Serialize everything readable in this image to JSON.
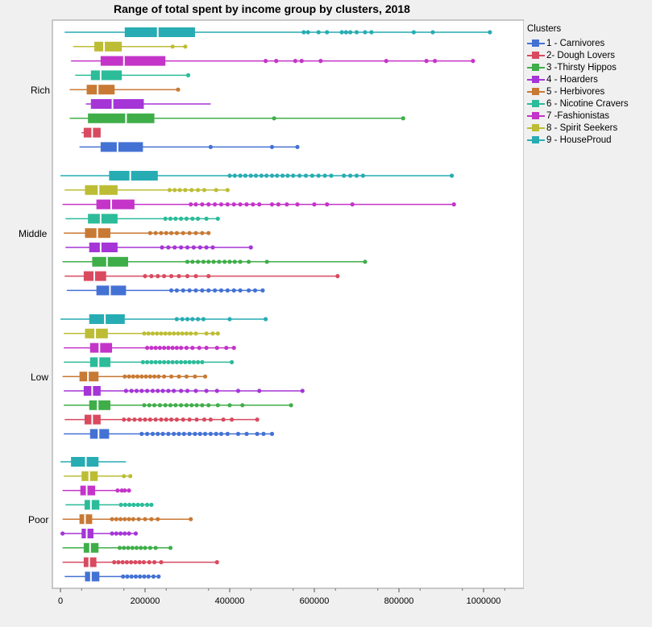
{
  "chart_data": {
    "type": "boxplot",
    "title": "Range of total spent by income group by clusters, 2018",
    "xlabel": "",
    "ylabel": "",
    "xlim": [
      -5000,
      1095000
    ],
    "xticks": [
      0,
      200000,
      400000,
      600000,
      800000,
      1000000
    ],
    "tick_labels": [
      "0",
      "200000",
      "400000",
      "600000",
      "800000",
      "1000000"
    ],
    "legend": {
      "title": "Clusters",
      "position": "right",
      "entries": [
        {
          "name": "1 - Carnivores",
          "color": "#4472d4"
        },
        {
          "name": "2- Dough Lovers",
          "color": "#d94a5f"
        },
        {
          "name": "3 -Thirsty Hippos",
          "color": "#3fae49"
        },
        {
          "name": "4 - Hoarders",
          "color": "#a535d6"
        },
        {
          "name": "5 - Herbivores",
          "color": "#c87934"
        },
        {
          "name": "6 - Nicotine Cravers",
          "color": "#2cbc9a"
        },
        {
          "name": "7 -Fashionistas",
          "color": "#c434c9"
        },
        {
          "name": "8 - Spirit Seekers",
          "color": "#bdbd35"
        },
        {
          "name": "9 - HouseProud",
          "color": "#27acb3"
        }
      ]
    },
    "groups": [
      {
        "name": "Rich",
        "boxes": [
          {
            "cluster": 1,
            "min": 45000,
            "q1": 95000,
            "median": 135000,
            "q3": 195000,
            "max": 560000,
            "outliers": [
              355000,
              500000,
              560000
            ]
          },
          {
            "cluster": 2,
            "min": 50000,
            "q1": 55000,
            "median": 75000,
            "q3": 95000,
            "max": 95000,
            "outliers": []
          },
          {
            "cluster": 3,
            "min": 22000,
            "q1": 65000,
            "median": 155000,
            "q3": 222000,
            "max": 810000,
            "outliers": [
              505000,
              810000
            ]
          },
          {
            "cluster": 4,
            "min": 60000,
            "q1": 72000,
            "median": 123000,
            "q3": 197000,
            "max": 355000,
            "outliers": []
          },
          {
            "cluster": 5,
            "min": 22000,
            "q1": 62000,
            "median": 88000,
            "q3": 128000,
            "max": 278000,
            "outliers": [
              278000
            ]
          },
          {
            "cluster": 6,
            "min": 35000,
            "q1": 72000,
            "median": 95000,
            "q3": 145000,
            "max": 302000,
            "outliers": [
              302000
            ]
          },
          {
            "cluster": 7,
            "min": 25000,
            "q1": 95000,
            "median": 150000,
            "q3": 248000,
            "max": 975000,
            "outliers": [
              485000,
              510000,
              555000,
              570000,
              615000,
              770000,
              865000,
              885000,
              975000
            ]
          },
          {
            "cluster": 8,
            "min": 30000,
            "q1": 80000,
            "median": 103000,
            "q3": 145000,
            "max": 295000,
            "outliers": [
              265000,
              295000
            ]
          },
          {
            "cluster": 9,
            "min": 10000,
            "q1": 152000,
            "median": 230000,
            "q3": 318000,
            "max": 1015000,
            "outliers": [
              575000,
              585000,
              610000,
              630000,
              665000,
              675000,
              685000,
              700000,
              720000,
              735000,
              835000,
              880000,
              1015000
            ]
          }
        ]
      },
      {
        "name": "Middle",
        "boxes": [
          {
            "cluster": 1,
            "min": 15000,
            "q1": 85000,
            "median": 117000,
            "q3": 155000,
            "max": 478000,
            "outliers": [
              262000,
              275000,
              290000,
              305000,
              320000,
              335000,
              350000,
              365000,
              380000,
              395000,
              410000,
              425000,
              445000,
              460000,
              478000
            ]
          },
          {
            "cluster": 2,
            "min": 10000,
            "q1": 55000,
            "median": 80000,
            "q3": 108000,
            "max": 655000,
            "outliers": [
              200000,
              215000,
              230000,
              245000,
              262000,
              280000,
              300000,
              320000,
              350000,
              655000
            ]
          },
          {
            "cluster": 3,
            "min": 5000,
            "q1": 75000,
            "median": 110000,
            "q3": 160000,
            "max": 720000,
            "outliers": [
              300000,
              312000,
              325000,
              338000,
              350000,
              362000,
              375000,
              388000,
              400000,
              412000,
              425000,
              445000,
              488000,
              720000
            ]
          },
          {
            "cluster": 4,
            "min": 12000,
            "q1": 68000,
            "median": 95000,
            "q3": 135000,
            "max": 450000,
            "outliers": [
              240000,
              255000,
              270000,
              285000,
              300000,
              315000,
              330000,
              345000,
              360000,
              450000
            ]
          },
          {
            "cluster": 5,
            "min": 8000,
            "q1": 58000,
            "median": 87000,
            "q3": 118000,
            "max": 350000,
            "outliers": [
              212000,
              225000,
              238000,
              250000,
              262000,
              275000,
              290000,
              305000,
              320000,
              335000,
              350000
            ]
          },
          {
            "cluster": 6,
            "min": 12000,
            "q1": 65000,
            "median": 95000,
            "q3": 135000,
            "max": 372000,
            "outliers": [
              248000,
              260000,
              272000,
              285000,
              298000,
              312000,
              325000,
              345000,
              372000
            ]
          },
          {
            "cluster": 7,
            "min": 5000,
            "q1": 85000,
            "median": 120000,
            "q3": 175000,
            "max": 930000,
            "outliers": [
              308000,
              320000,
              335000,
              350000,
              365000,
              380000,
              395000,
              410000,
              425000,
              440000,
              455000,
              470000,
              500000,
              515000,
              535000,
              560000,
              600000,
              630000,
              690000,
              930000
            ]
          },
          {
            "cluster": 8,
            "min": 10000,
            "q1": 58000,
            "median": 90000,
            "q3": 135000,
            "max": 395000,
            "outliers": [
              258000,
              270000,
              282000,
              295000,
              310000,
              325000,
              340000,
              368000,
              395000
            ]
          },
          {
            "cluster": 9,
            "min": 0,
            "q1": 115000,
            "median": 165000,
            "q3": 230000,
            "max": 925000,
            "outliers": [
              400000,
              412000,
              425000,
              437000,
              450000,
              462000,
              475000,
              487000,
              500000,
              512000,
              525000,
              537000,
              550000,
              565000,
              580000,
              595000,
              610000,
              625000,
              640000,
              670000,
              685000,
              700000,
              715000,
              925000
            ]
          }
        ]
      },
      {
        "name": "Low",
        "boxes": [
          {
            "cluster": 1,
            "min": 8000,
            "q1": 70000,
            "median": 90000,
            "q3": 115000,
            "max": 500000,
            "outliers": [
              192000,
              205000,
              218000,
              230000,
              242000,
              255000,
              268000,
              280000,
              292000,
              305000,
              318000,
              330000,
              342000,
              355000,
              368000,
              380000,
              395000,
              420000,
              440000,
              465000,
              480000,
              500000
            ]
          },
          {
            "cluster": 2,
            "min": 10000,
            "q1": 57000,
            "median": 75000,
            "q3": 95000,
            "max": 465000,
            "outliers": [
              150000,
              162000,
              175000,
              188000,
              200000,
              212000,
              225000,
              238000,
              250000,
              262000,
              275000,
              290000,
              305000,
              322000,
              340000,
              355000,
              385000,
              405000,
              465000
            ]
          },
          {
            "cluster": 3,
            "min": 8000,
            "q1": 68000,
            "median": 88000,
            "q3": 118000,
            "max": 545000,
            "outliers": [
              198000,
              210000,
              222000,
              235000,
              248000,
              260000,
              272000,
              285000,
              298000,
              310000,
              322000,
              335000,
              350000,
              372000,
              400000,
              430000,
              545000
            ]
          },
          {
            "cluster": 4,
            "min": 8000,
            "q1": 55000,
            "median": 75000,
            "q3": 95000,
            "max": 572000,
            "outliers": [
              155000,
              168000,
              180000,
              192000,
              205000,
              218000,
              230000,
              242000,
              255000,
              268000,
              285000,
              300000,
              320000,
              345000,
              370000,
              420000,
              470000,
              572000
            ]
          },
          {
            "cluster": 5,
            "min": 5000,
            "q1": 45000,
            "median": 65000,
            "q3": 90000,
            "max": 342000,
            "outliers": [
              152000,
              162000,
              172000,
              182000,
              192000,
              202000,
              212000,
              222000,
              232000,
              245000,
              262000,
              280000,
              298000,
              318000,
              342000
            ]
          },
          {
            "cluster": 6,
            "min": 8000,
            "q1": 70000,
            "median": 90000,
            "q3": 118000,
            "max": 405000,
            "outliers": [
              195000,
              205000,
              215000,
              225000,
              235000,
              245000,
              255000,
              265000,
              275000,
              285000,
              295000,
              305000,
              315000,
              325000,
              335000,
              405000
            ]
          },
          {
            "cluster": 7,
            "min": 8000,
            "q1": 70000,
            "median": 92000,
            "q3": 122000,
            "max": 410000,
            "outliers": [
              205000,
              215000,
              225000,
              235000,
              245000,
              255000,
              265000,
              275000,
              285000,
              298000,
              312000,
              328000,
              345000,
              370000,
              392000,
              410000
            ]
          },
          {
            "cluster": 8,
            "min": 8000,
            "q1": 58000,
            "median": 82000,
            "q3": 112000,
            "max": 372000,
            "outliers": [
              198000,
              208000,
              218000,
              228000,
              238000,
              248000,
              258000,
              268000,
              278000,
              288000,
              298000,
              308000,
              320000,
              345000,
              360000,
              372000
            ]
          },
          {
            "cluster": 9,
            "min": 0,
            "q1": 68000,
            "median": 105000,
            "q3": 152000,
            "max": 485000,
            "outliers": [
              275000,
              288000,
              300000,
              312000,
              325000,
              338000,
              400000,
              485000
            ]
          }
        ]
      },
      {
        "name": "Poor",
        "boxes": [
          {
            "cluster": 1,
            "min": 10000,
            "q1": 58000,
            "median": 72000,
            "q3": 92000,
            "max": 232000,
            "outliers": [
              148000,
              158000,
              168000,
              178000,
              188000,
              198000,
              208000,
              220000,
              232000
            ]
          },
          {
            "cluster": 2,
            "min": 5000,
            "q1": 55000,
            "median": 68000,
            "q3": 85000,
            "max": 370000,
            "outliers": [
              127000,
              137000,
              147000,
              157000,
              167000,
              177000,
              187000,
              197000,
              210000,
              222000,
              238000,
              370000
            ]
          },
          {
            "cluster": 3,
            "min": 5000,
            "q1": 55000,
            "median": 70000,
            "q3": 90000,
            "max": 260000,
            "outliers": [
              140000,
              150000,
              160000,
              170000,
              180000,
              190000,
              200000,
              212000,
              225000,
              260000
            ]
          },
          {
            "cluster": 4,
            "min": 5000,
            "q1": 50000,
            "median": 62000,
            "q3": 78000,
            "max": 178000,
            "outliers": [
              5000,
              122000,
              132000,
              142000,
              152000,
              162000,
              178000
            ]
          },
          {
            "cluster": 5,
            "min": 5000,
            "q1": 45000,
            "median": 58000,
            "q3": 75000,
            "max": 308000,
            "outliers": [
              122000,
              132000,
              142000,
              152000,
              162000,
              172000,
              185000,
              200000,
              215000,
              230000,
              308000
            ]
          },
          {
            "cluster": 6,
            "min": 12000,
            "q1": 57000,
            "median": 72000,
            "q3": 92000,
            "max": 215000,
            "outliers": [
              143000,
              153000,
              163000,
              173000,
              183000,
              193000,
              205000,
              215000
            ]
          },
          {
            "cluster": 7,
            "min": 5000,
            "q1": 47000,
            "median": 62000,
            "q3": 82000,
            "max": 162000,
            "outliers": [
              135000,
              145000,
              152000,
              162000
            ]
          },
          {
            "cluster": 8,
            "min": 8000,
            "q1": 50000,
            "median": 68000,
            "q3": 88000,
            "max": 165000,
            "outliers": [
              150000,
              165000
            ]
          },
          {
            "cluster": 9,
            "min": 0,
            "q1": 25000,
            "median": 60000,
            "q3": 90000,
            "max": 155000,
            "outliers": []
          }
        ]
      }
    ]
  }
}
